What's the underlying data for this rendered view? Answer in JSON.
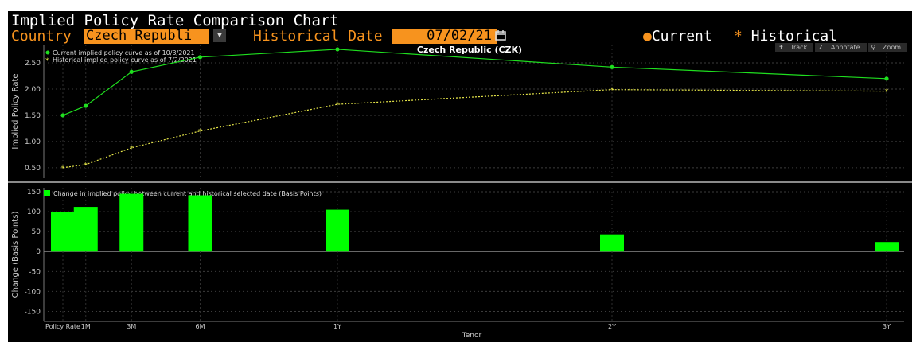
{
  "header": {
    "title": "Implied Policy Rate Comparison Chart",
    "country_label": "Country",
    "country_value": "Czech Republi",
    "historical_date_label": "Historical Date",
    "historical_date_value": "07/02/21",
    "legend_current": "Current",
    "legend_historical": "Historical"
  },
  "toolbar": {
    "track": "Track",
    "annotate": "Annotate",
    "zoom": "Zoom"
  },
  "colors": {
    "current": "#1fdf1f",
    "historical": "#e8e84a",
    "bars": "#00ff00",
    "accent": "#f7931e"
  },
  "chart_data": [
    {
      "type": "line",
      "title": "Czech Republic (CZK)",
      "ylabel": "Implied Policy Rate",
      "categories": [
        "Policy Rate",
        "1M",
        "3M",
        "6M",
        "1Y",
        "2Y",
        "3Y"
      ],
      "x_positions": [
        0,
        1,
        3,
        6,
        12,
        24,
        36
      ],
      "ylim": [
        0.3,
        2.85
      ],
      "yticks": [
        0.5,
        1.0,
        1.5,
        2.0,
        2.5
      ],
      "ytick_labels": [
        "0.50",
        "1.00",
        "1.50",
        "2.00",
        "2.50"
      ],
      "legend_position": "top-left",
      "series": [
        {
          "name": "Current implied policy curve as of 10/3/2021",
          "values": [
            1.5,
            1.68,
            2.33,
            2.61,
            2.76,
            2.42,
            2.2
          ]
        },
        {
          "name": "Historical implied policy curve as of 7/2/2021",
          "values": [
            0.5,
            0.56,
            0.88,
            1.2,
            1.71,
            1.99,
            1.96
          ]
        }
      ]
    },
    {
      "type": "bar",
      "ylabel": "Change (Basis Points)",
      "xlabel": "Tenor",
      "categories": [
        "Policy Rate",
        "1M",
        "3M",
        "6M",
        "1Y",
        "2Y",
        "3Y"
      ],
      "x_positions": [
        0,
        1,
        3,
        6,
        12,
        24,
        36
      ],
      "ylim": [
        -175,
        160
      ],
      "yticks": [
        -150,
        -100,
        -50,
        0,
        50,
        100,
        150
      ],
      "ytick_labels": [
        "-150",
        "-100",
        "-50",
        "0",
        "50",
        "100",
        "150"
      ],
      "legend_position": "top-left",
      "series": [
        {
          "name": "Change in implied policy between current and historical selected date (Basis Points)",
          "values": [
            100,
            112,
            145,
            141,
            105,
            43,
            24
          ]
        }
      ]
    }
  ]
}
